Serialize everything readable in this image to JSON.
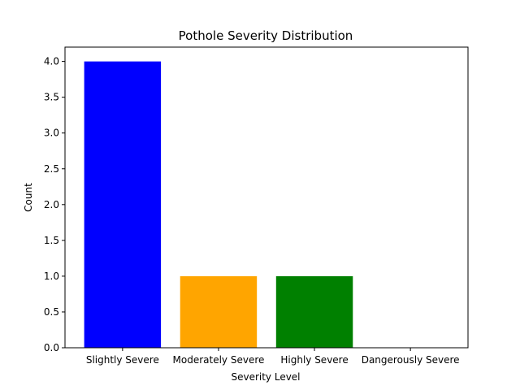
{
  "chart_data": {
    "type": "bar",
    "title": "Pothole Severity Distribution",
    "xlabel": "Severity Level",
    "ylabel": "Count",
    "categories": [
      "Slightly Severe",
      "Moderately Severe",
      "Highly Severe",
      "Dangerously Severe"
    ],
    "values": [
      4,
      1,
      1,
      0
    ],
    "colors": [
      "#0000ff",
      "#ffa500",
      "#008000",
      "#ff0000"
    ],
    "ylim": [
      0,
      4.2
    ],
    "yticks": [
      0.0,
      0.5,
      1.0,
      1.5,
      2.0,
      2.5,
      3.0,
      3.5,
      4.0
    ],
    "ytick_labels": [
      "0.0",
      "0.5",
      "1.0",
      "1.5",
      "2.0",
      "2.5",
      "3.0",
      "3.5",
      "4.0"
    ],
    "grid": false
  }
}
